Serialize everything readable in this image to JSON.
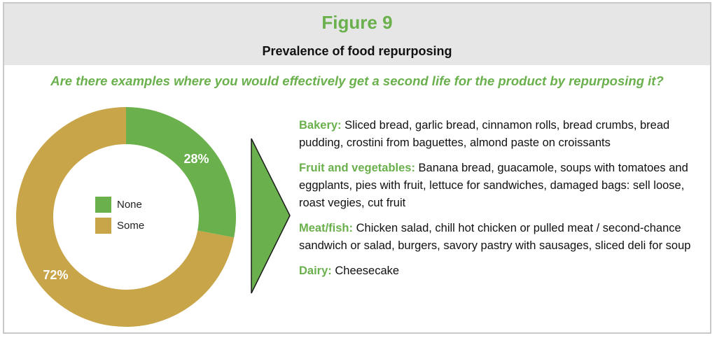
{
  "figure_title": "Figure 9",
  "subtitle": "Prevalence of food repurposing",
  "question": "Are there examples where you would effectively get a second life for the product by repurposing it?",
  "colors": {
    "green": "#6ab04c",
    "gold": "#c9a54a",
    "header_bg": "#e6e6e6"
  },
  "chart_data": {
    "type": "pie",
    "donut": true,
    "categories": [
      "None",
      "Some"
    ],
    "values": [
      28,
      72
    ],
    "labels": [
      "28%",
      "72%"
    ],
    "colors": [
      "#6ab04c",
      "#c9a54a"
    ],
    "legend_position": "center",
    "title": "",
    "subtitle": ""
  },
  "legend": [
    {
      "label": "None",
      "color": "#6ab04c"
    },
    {
      "label": "Some",
      "color": "#c9a54a"
    }
  ],
  "examples": [
    {
      "category": "Bakery:",
      "text": " Sliced bread, garlic bread, cinnamon rolls, bread crumbs, bread pudding, crostini from baguettes, almond paste on croissants"
    },
    {
      "category": "Fruit and vegetables:",
      "text": " Banana bread, guacamole, soups with tomatoes and eggplants, pies with fruit, lettuce for sandwiches, damaged bags: sell loose, roast vegies, cut fruit"
    },
    {
      "category": "Meat/fish:",
      "text": " Chicken salad, chill hot chicken or pulled meat / second-chance sandwich or salad, burgers, savory pastry with sausages, sliced deli for soup"
    },
    {
      "category": "Dairy:",
      "text": " Cheesecake"
    }
  ]
}
